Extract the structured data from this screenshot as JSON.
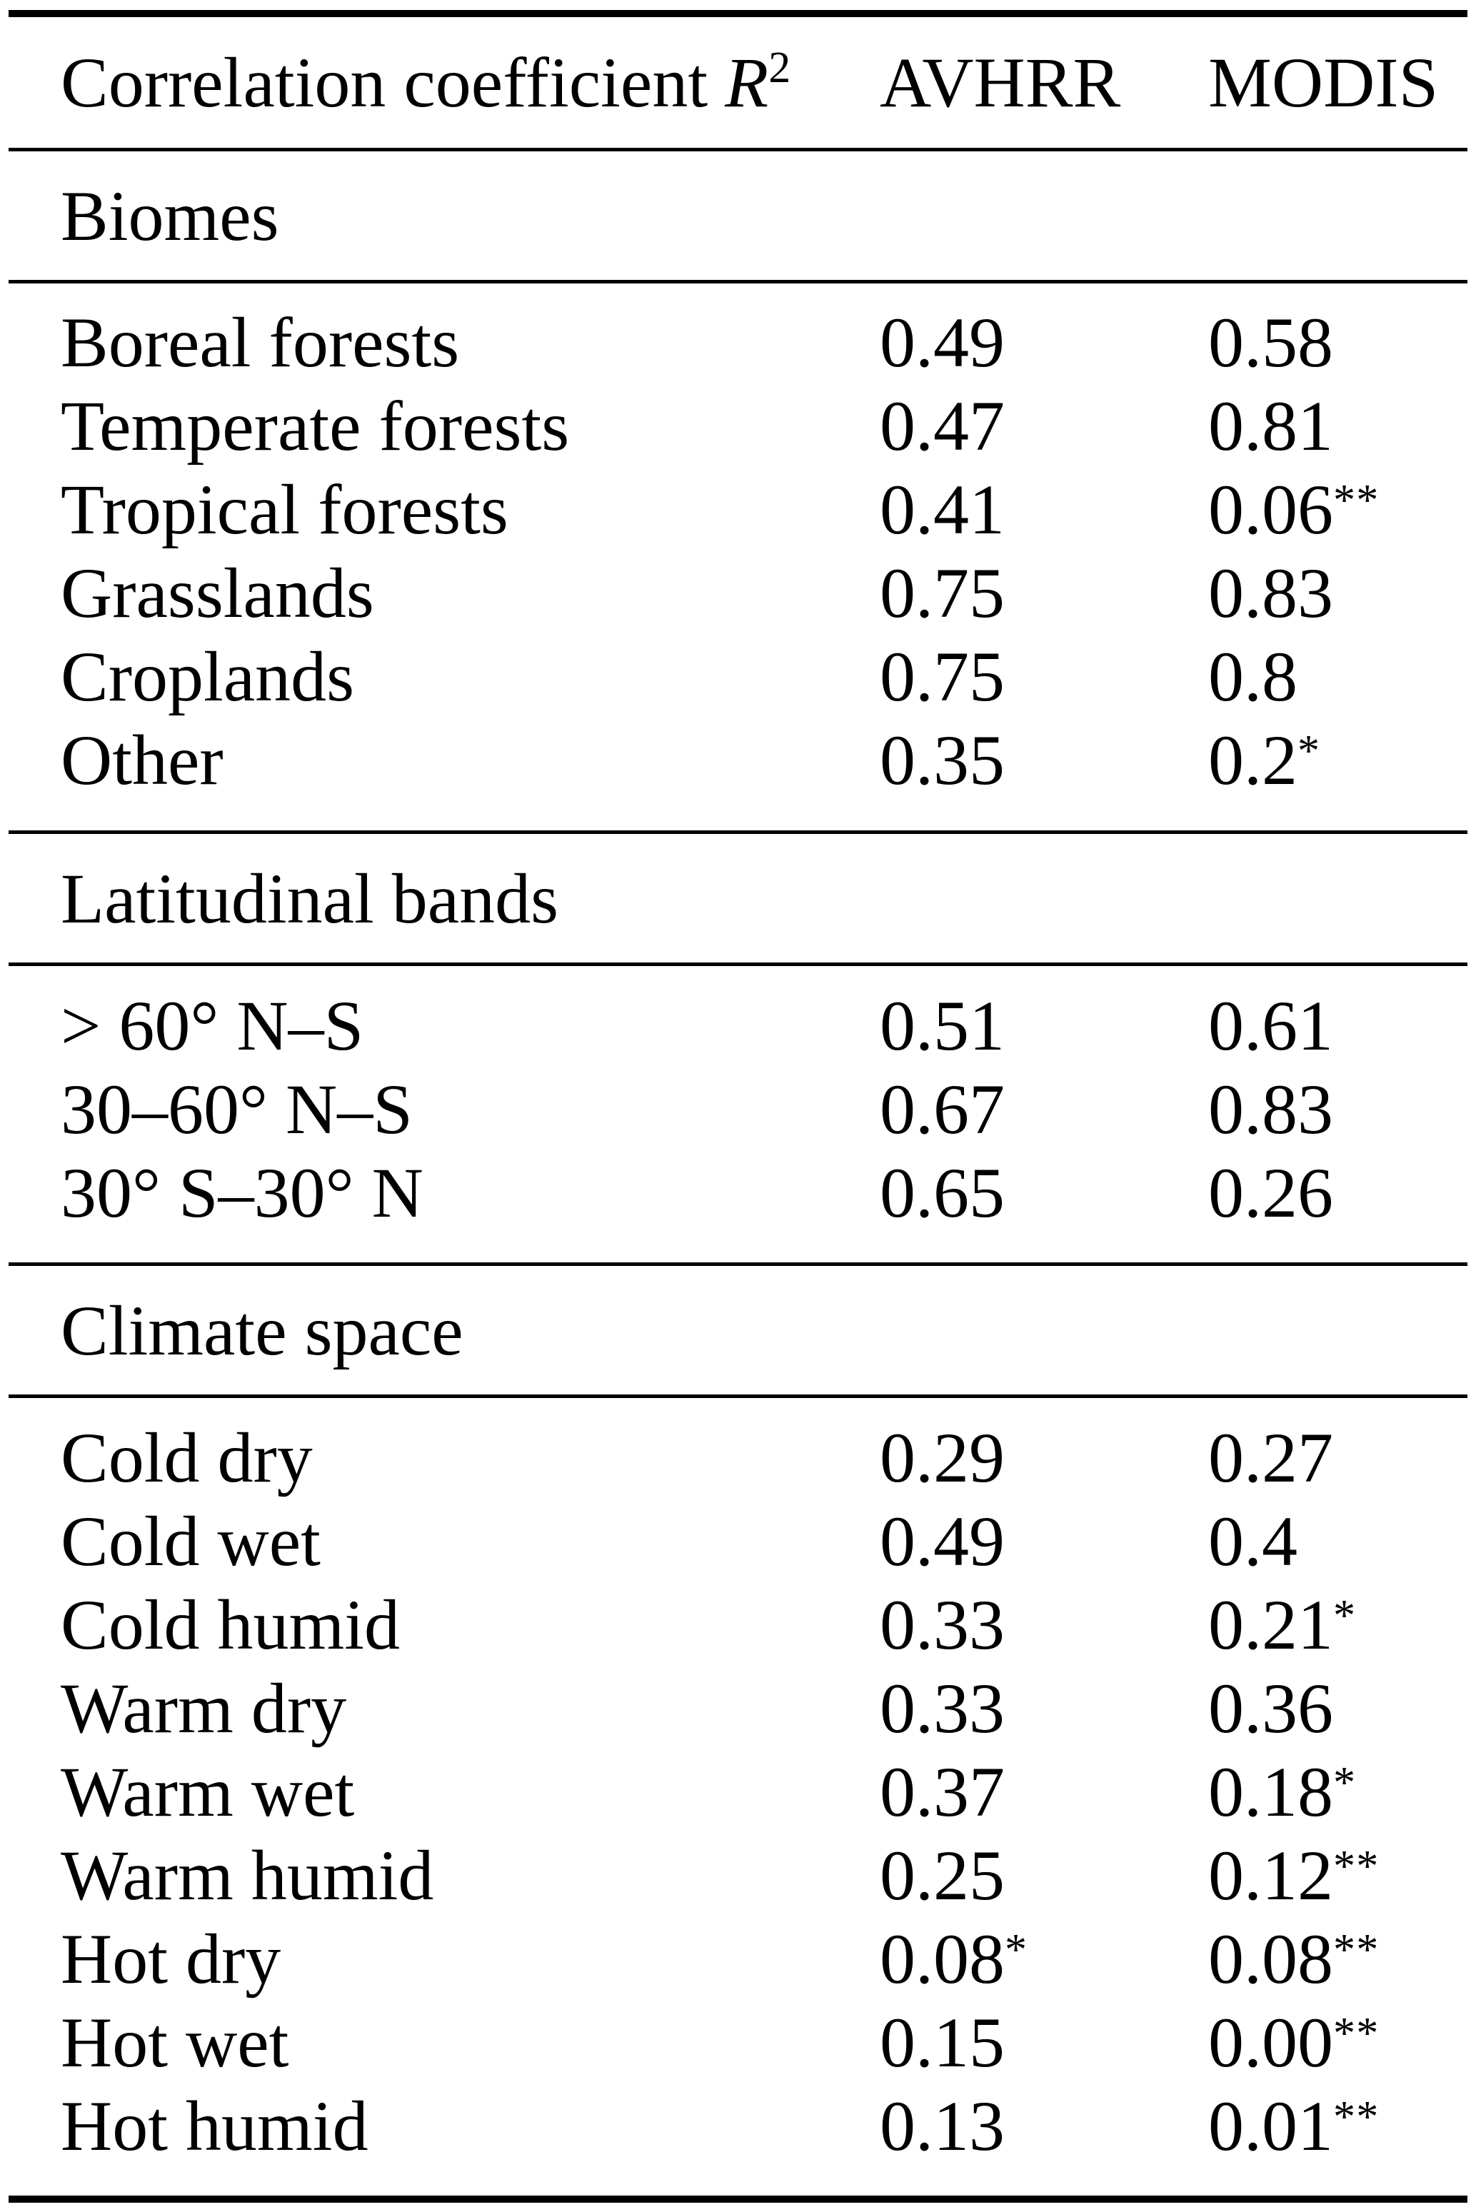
{
  "table": {
    "header": {
      "col1": "Correlation coefficient",
      "col1_math": "R",
      "col1_sup": "2",
      "col2": "AVHRR",
      "col3": "MODIS"
    },
    "sections": [
      {
        "title": "Biomes",
        "rows": [
          {
            "label": "Boreal forests",
            "avhrr": "0.49",
            "modis": "0.58"
          },
          {
            "label": "Temperate forests",
            "avhrr": "0.47",
            "modis": "0.81"
          },
          {
            "label": "Tropical forests",
            "avhrr": "0.41",
            "modis": "0.06",
            "modis_sup": "**"
          },
          {
            "label": "Grasslands",
            "avhrr": "0.75",
            "modis": "0.83"
          },
          {
            "label": "Croplands",
            "avhrr": "0.75",
            "modis": "0.8"
          },
          {
            "label": "Other",
            "avhrr": "0.35",
            "modis": "0.2",
            "modis_sup": "*"
          }
        ]
      },
      {
        "title": "Latitudinal bands",
        "rows": [
          {
            "label": "> 60° N–S",
            "avhrr": "0.51",
            "modis": "0.61"
          },
          {
            "label": "30–60° N–S",
            "avhrr": "0.67",
            "modis": "0.83"
          },
          {
            "label": "30° S–30° N",
            "avhrr": "0.65",
            "modis": "0.26"
          }
        ]
      },
      {
        "title": "Climate space",
        "rows": [
          {
            "label": "Cold dry",
            "avhrr": "0.29",
            "modis": "0.27"
          },
          {
            "label": "Cold wet",
            "avhrr": "0.49",
            "modis": "0.4"
          },
          {
            "label": "Cold humid",
            "avhrr": "0.33",
            "modis": "0.21",
            "modis_sup": "*"
          },
          {
            "label": "Warm dry",
            "avhrr": "0.33",
            "modis": "0.36"
          },
          {
            "label": "Warm wet",
            "avhrr": "0.37",
            "modis": "0.18",
            "modis_sup": "*"
          },
          {
            "label": "Warm humid",
            "avhrr": "0.25",
            "modis": "0.12",
            "modis_sup": "**"
          },
          {
            "label": "Hot dry",
            "avhrr": "0.08",
            "avhrr_sup": "*",
            "modis": "0.08",
            "modis_sup": "**"
          },
          {
            "label": "Hot wet",
            "avhrr": "0.15",
            "modis": "0.00",
            "modis_sup": "**"
          },
          {
            "label": "Hot humid",
            "avhrr": "0.13",
            "modis": "0.01",
            "modis_sup": "**"
          }
        ]
      }
    ]
  }
}
